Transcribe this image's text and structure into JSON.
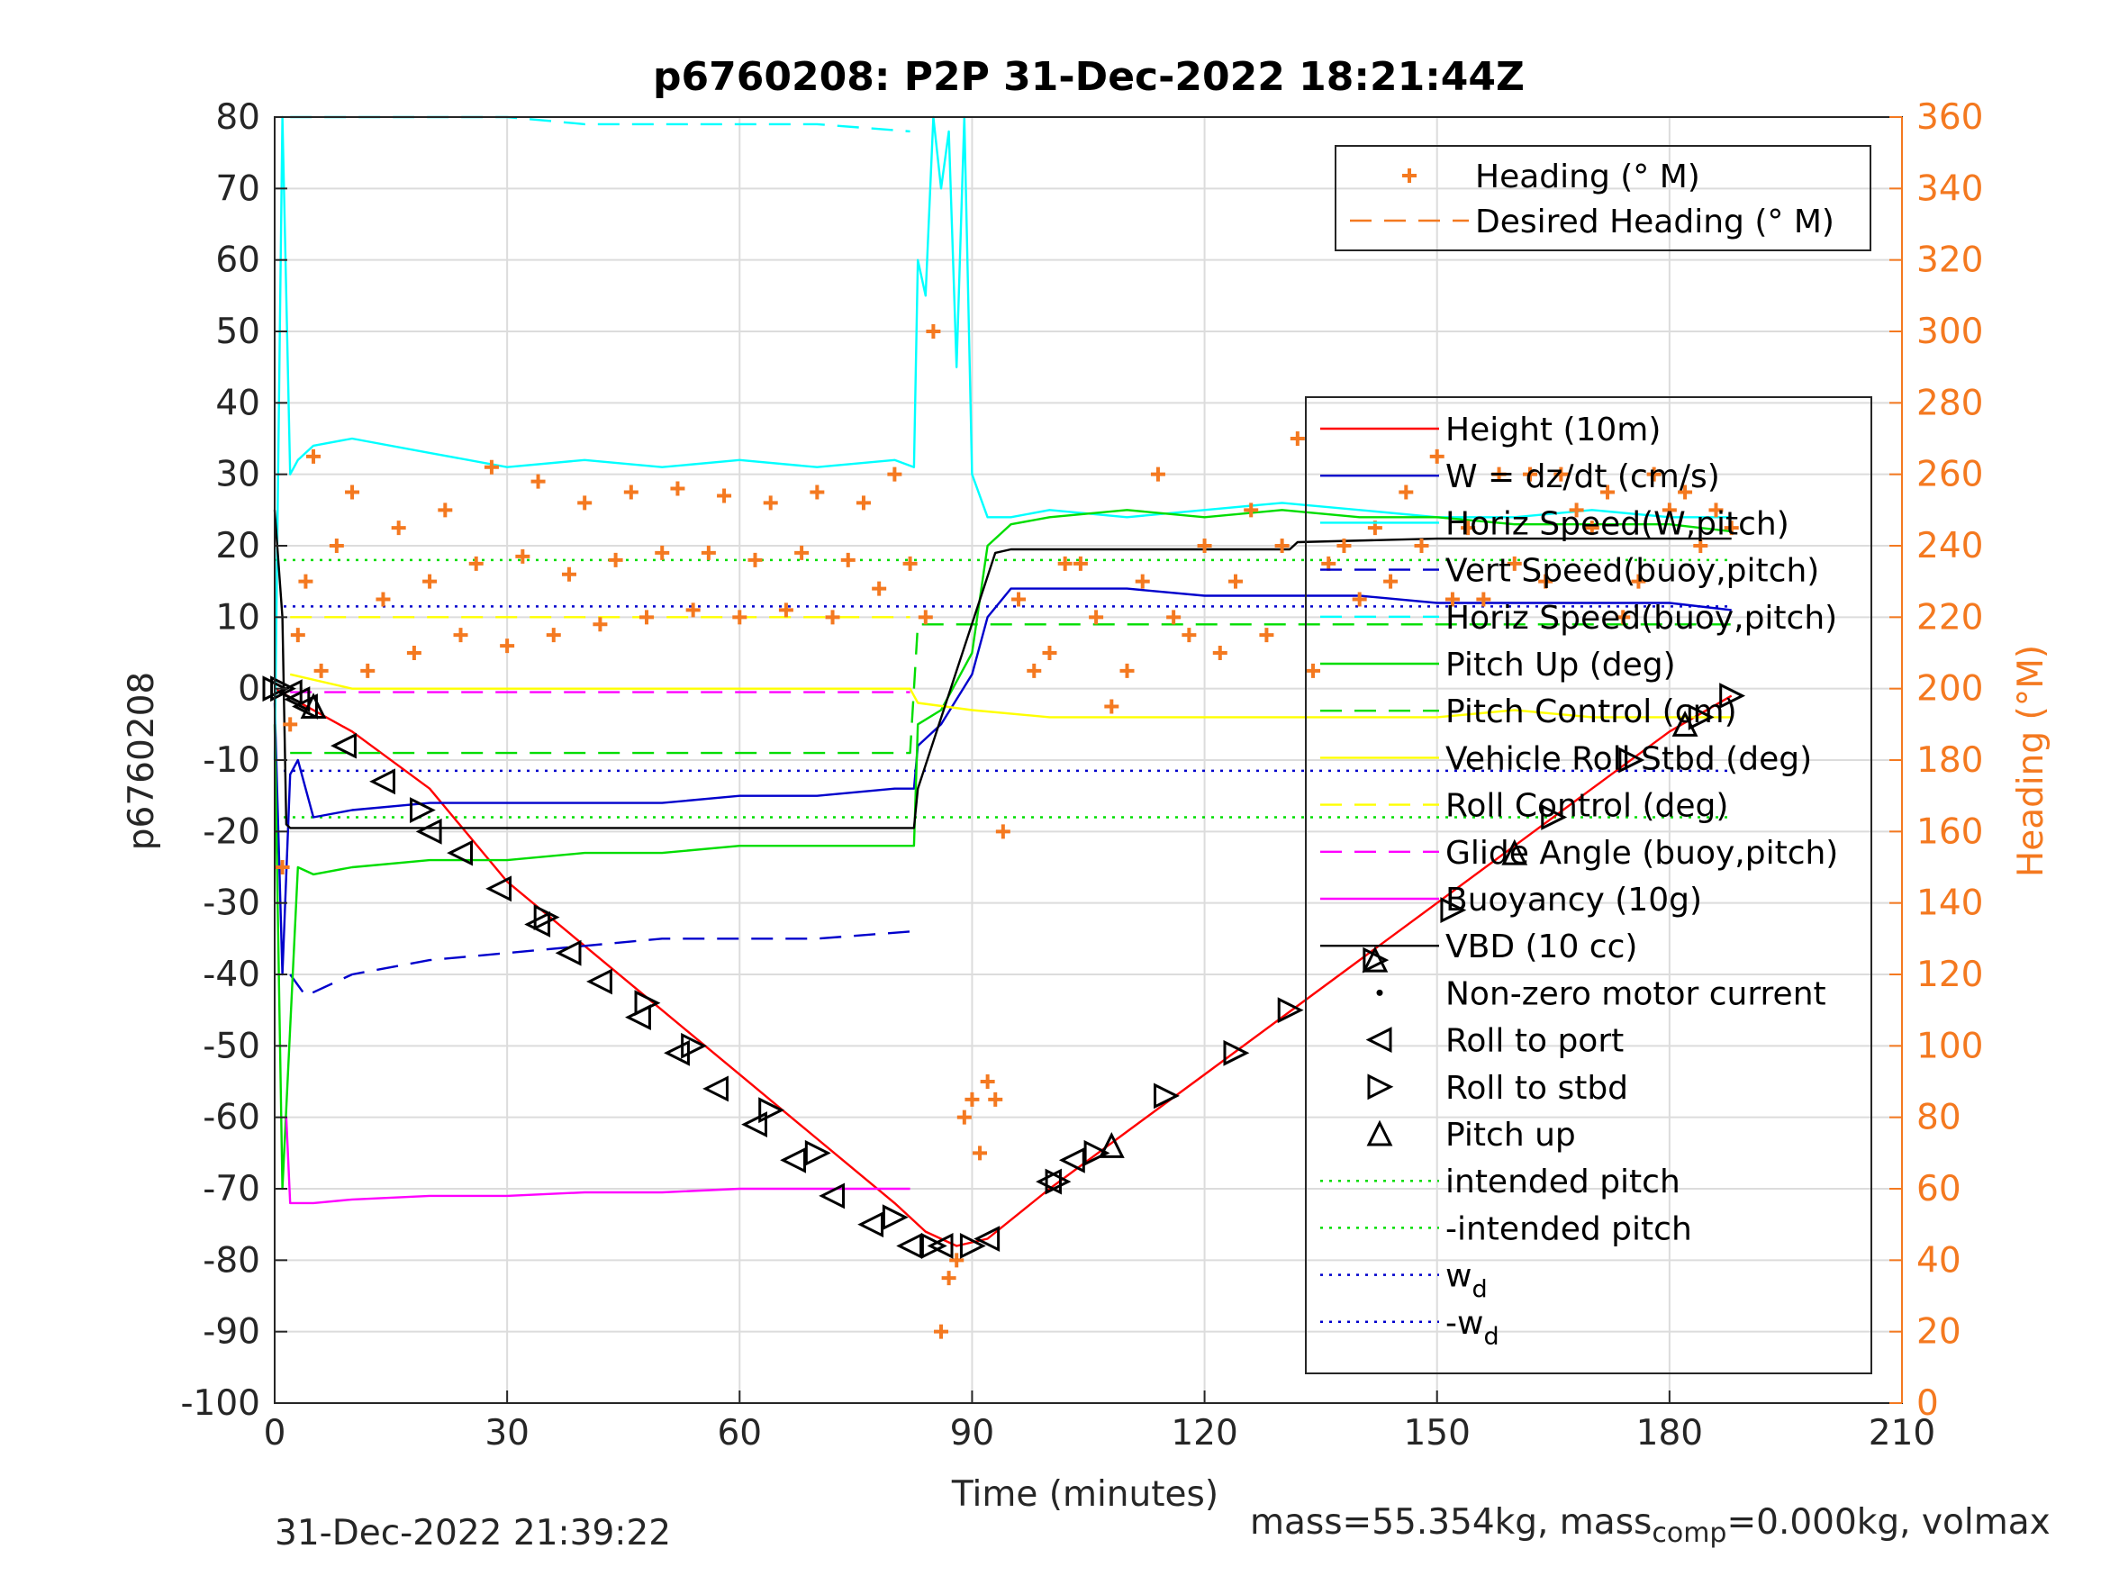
{
  "chart_data": {
    "type": "line",
    "title": "p6760208: P2P 31-Dec-2022 18:21:44Z",
    "xlabel": "Time (minutes)",
    "ylabel": "p6760208",
    "y2label": "Heading (°M)",
    "xlim": [
      0,
      210
    ],
    "ylim": [
      -100,
      80
    ],
    "y2lim": [
      0,
      360
    ],
    "xticks": [
      "0",
      "30",
      "60",
      "90",
      "120",
      "150",
      "180",
      "210"
    ],
    "yticks": [
      "80",
      "70",
      "60",
      "50",
      "40",
      "30",
      "20",
      "10",
      "0",
      "-10",
      "-20",
      "-30",
      "-40",
      "-50",
      "-60",
      "-70",
      "-80",
      "-90",
      "-100"
    ],
    "y2ticks": [
      "360",
      "340",
      "320",
      "300",
      "280",
      "260",
      "240",
      "220",
      "200",
      "180",
      "160",
      "140",
      "120",
      "100",
      "80",
      "60",
      "40",
      "20",
      "0"
    ],
    "grid": true,
    "colors": {
      "axis": "#262626",
      "grid": "#dcdcdc",
      "heading": "#f47920",
      "height": "#ff0000",
      "w": "#0000cc",
      "horiz_speed": "#00ffff",
      "pitch": "#00dd00",
      "roll": "#ffff00",
      "buoyancy": "#ff00ff",
      "vbd": "#000000"
    },
    "legend_top": {
      "placement": "top-right",
      "entries": [
        {
          "label": "Heading (° M)",
          "style": "plus",
          "color": "#f47920"
        },
        {
          "label": "Desired Heading (° M)",
          "style": "dash",
          "color": "#f47920"
        }
      ]
    },
    "legend_main": {
      "placement": "right",
      "entries": [
        {
          "label": "Height (10m)",
          "style": "line",
          "color": "#ff0000"
        },
        {
          "label": "W = dz/dt (cm/s)",
          "style": "line",
          "color": "#0000cc"
        },
        {
          "label": "Horiz Speed(W,pitch)",
          "style": "line",
          "color": "#00ffff"
        },
        {
          "label": "Vert Speed(buoy,pitch)",
          "style": "dash",
          "color": "#0000cc"
        },
        {
          "label": "Horiz Speed(buoy,pitch)",
          "style": "dash",
          "color": "#00ffff"
        },
        {
          "label": "Pitch Up (deg)",
          "style": "line",
          "color": "#00dd00"
        },
        {
          "label": "Pitch Control (cm)",
          "style": "dash",
          "color": "#00dd00"
        },
        {
          "label": "Vehicle Roll Stbd (deg)",
          "style": "line",
          "color": "#ffff00"
        },
        {
          "label": "Roll Control (deg)",
          "style": "dash",
          "color": "#ffff00"
        },
        {
          "label": "Glide Angle (buoy,pitch)",
          "style": "dash",
          "color": "#ff00ff"
        },
        {
          "label": "Buoyancy (10g)",
          "style": "line",
          "color": "#ff00ff"
        },
        {
          "label": "VBD (10 cc)",
          "style": "line",
          "color": "#000000"
        },
        {
          "label": "Non-zero motor current",
          "style": "dot",
          "color": "#000000"
        },
        {
          "label": "Roll to port",
          "style": "tri-left",
          "color": "#000000"
        },
        {
          "label": "Roll to stbd",
          "style": "tri-right",
          "color": "#000000"
        },
        {
          "label": "Pitch up",
          "style": "tri-up",
          "color": "#000000"
        },
        {
          "label": "intended pitch",
          "style": "dot-line",
          "color": "#00dd00"
        },
        {
          "label": "-intended pitch",
          "style": "dot-line",
          "color": "#00dd00"
        },
        {
          "label": "w",
          "sub": "d",
          "style": "dot-line",
          "color": "#0000cc"
        },
        {
          "label": "-w",
          "sub": "d",
          "style": "dot-line",
          "color": "#0000cc"
        }
      ]
    },
    "series": [
      {
        "name": "Height (10m)",
        "color": "#ff0000",
        "style": "solid",
        "x": [
          0,
          10,
          20,
          30,
          40,
          50,
          60,
          70,
          80,
          84,
          88,
          92,
          100,
          110,
          120,
          130,
          140,
          150,
          160,
          170,
          180,
          188
        ],
        "y": [
          0,
          -6,
          -14,
          -27,
          -36,
          -45,
          -54,
          -63,
          -72,
          -76,
          -78,
          -77,
          -70,
          -62,
          -54,
          -46,
          -38,
          -30,
          -22,
          -14,
          -6,
          -1
        ]
      },
      {
        "name": "W = dz/dt (cm/s)",
        "color": "#0000cc",
        "style": "solid",
        "x": [
          0,
          1,
          2,
          3,
          5,
          10,
          20,
          30,
          40,
          50,
          60,
          70,
          80,
          82.5,
          83,
          86,
          90,
          92,
          95,
          100,
          110,
          120,
          130,
          140,
          150,
          160,
          170,
          180,
          188
        ],
        "y": [
          -2,
          -40,
          -12,
          -10,
          -18,
          -17,
          -16,
          -16,
          -16,
          -16,
          -15,
          -15,
          -14,
          -14,
          -8,
          -5,
          2,
          10,
          14,
          14,
          14,
          13,
          13,
          13,
          12,
          12,
          12,
          12,
          11
        ]
      },
      {
        "name": "Horiz Speed(W,pitch)",
        "color": "#00ffff",
        "style": "solid",
        "x": [
          0,
          1,
          2,
          3,
          5,
          10,
          20,
          30,
          40,
          50,
          60,
          70,
          80,
          82.5,
          83,
          84,
          85,
          86,
          87,
          88,
          89,
          90,
          92,
          95,
          100,
          110,
          120,
          130,
          140,
          150,
          160,
          170,
          180,
          188
        ],
        "y": [
          -10,
          80,
          30,
          32,
          34,
          35,
          33,
          31,
          32,
          31,
          32,
          31,
          32,
          31,
          60,
          55,
          80,
          70,
          78,
          45,
          80,
          30,
          24,
          24,
          25,
          24,
          25,
          26,
          25,
          24,
          24,
          25,
          24,
          24
        ]
      },
      {
        "name": "Vert Speed(buoy,pitch)",
        "color": "#0000cc",
        "style": "dashed",
        "x": [
          2,
          4,
          10,
          20,
          30,
          40,
          50,
          60,
          70,
          82
        ],
        "y": [
          -40,
          -43,
          -40,
          -38,
          -37,
          -36,
          -35,
          -35,
          -35,
          -34
        ]
      },
      {
        "name": "Horiz Speed(buoy,pitch)",
        "color": "#00ffff",
        "style": "dashed",
        "x": [
          2,
          10,
          20,
          30,
          40,
          50,
          60,
          70,
          82
        ],
        "y": [
          80,
          80,
          80,
          80,
          79,
          79,
          79,
          79,
          78
        ]
      },
      {
        "name": "Pitch Up (deg)",
        "color": "#00dd00",
        "style": "solid",
        "x": [
          0,
          1,
          3,
          5,
          10,
          20,
          30,
          40,
          50,
          60,
          70,
          80,
          82.5,
          83,
          86,
          90,
          92,
          95,
          100,
          110,
          120,
          130,
          140,
          150,
          160,
          170,
          180,
          188
        ],
        "y": [
          -5,
          -70,
          -25,
          -26,
          -25,
          -24,
          -24,
          -23,
          -23,
          -22,
          -22,
          -22,
          -22,
          -5,
          -3,
          5,
          20,
          23,
          24,
          25,
          24,
          25,
          24,
          24,
          23,
          23,
          23,
          22
        ]
      },
      {
        "name": "Pitch Control (cm)",
        "color": "#00dd00",
        "style": "dashed",
        "x": [
          2,
          82,
          83,
          188
        ],
        "y": [
          -9,
          -9,
          9,
          9
        ]
      },
      {
        "name": "Vehicle Roll Stbd (deg)",
        "color": "#ffff00",
        "style": "solid",
        "x": [
          2,
          10,
          20,
          30,
          40,
          50,
          60,
          70,
          82,
          83,
          90,
          100,
          110,
          120,
          130,
          140,
          150,
          160,
          170,
          180,
          188
        ],
        "y": [
          2,
          0,
          0,
          0,
          0,
          0,
          0,
          0,
          0,
          -2,
          -3,
          -4,
          -4,
          -4,
          -4,
          -4,
          -4,
          -3,
          -4,
          -4,
          -4
        ]
      },
      {
        "name": "Roll Control (deg)",
        "color": "#ffff00",
        "style": "dashed",
        "x": [
          2,
          82
        ],
        "y": [
          10,
          10
        ]
      },
      {
        "name": "Glide Angle (buoy,pitch)",
        "color": "#ff00ff",
        "style": "dashed",
        "x": [
          2,
          82
        ],
        "y": [
          -0.5,
          -0.5
        ]
      },
      {
        "name": "Buoyancy (10g)",
        "color": "#ff00ff",
        "style": "solid",
        "x": [
          1.5,
          2,
          5,
          10,
          20,
          30,
          40,
          50,
          60,
          70,
          82
        ],
        "y": [
          -60,
          -72,
          -72,
          -71.5,
          -71,
          -71,
          -70.5,
          -70.5,
          -70,
          -70,
          -70
        ]
      },
      {
        "name": "VBD (10 cc)",
        "color": "#000000",
        "style": "solid",
        "x": [
          0,
          1,
          1.5,
          2,
          82.5,
          83,
          93,
          95,
          110,
          131,
          132,
          150,
          188
        ],
        "y": [
          25,
          10,
          -19,
          -19.5,
          -19.5,
          -14,
          19,
          19.5,
          19.5,
          19.5,
          20.5,
          21,
          21
        ]
      },
      {
        "name": "intended pitch",
        "color": "#00dd00",
        "style": "dotted",
        "x": [
          0,
          188
        ],
        "y": [
          18,
          18
        ]
      },
      {
        "name": "-intended pitch",
        "color": "#00dd00",
        "style": "dotted",
        "x": [
          0,
          188
        ],
        "y": [
          -18,
          -18
        ]
      },
      {
        "name": "w_d",
        "color": "#0000cc",
        "style": "dotted",
        "x": [
          0,
          188
        ],
        "y": [
          11.5,
          11.5
        ]
      },
      {
        "name": "-w_d",
        "color": "#0000cc",
        "style": "dotted",
        "x": [
          0,
          188
        ],
        "y": [
          -11.5,
          -11.5
        ]
      }
    ],
    "heading": {
      "name": "Heading (° M)",
      "axis": "right",
      "color": "#f47920",
      "x": [
        1,
        2,
        3,
        4,
        5,
        6,
        8,
        10,
        12,
        14,
        16,
        18,
        20,
        22,
        24,
        26,
        28,
        30,
        32,
        34,
        36,
        38,
        40,
        42,
        44,
        46,
        48,
        50,
        52,
        54,
        56,
        58,
        60,
        62,
        64,
        66,
        68,
        70,
        72,
        74,
        76,
        78,
        80,
        82,
        84,
        85,
        86,
        87,
        88,
        89,
        90,
        91,
        92,
        93,
        94,
        96,
        98,
        100,
        102,
        104,
        106,
        108,
        110,
        112,
        114,
        116,
        118,
        120,
        122,
        124,
        126,
        128,
        130,
        132,
        134,
        136,
        138,
        140,
        142,
        144,
        146,
        148,
        150,
        152,
        154,
        156,
        158,
        160,
        162,
        164,
        166,
        168,
        170,
        172,
        174,
        176,
        178,
        180,
        182,
        184,
        186,
        188
      ],
      "y": [
        150,
        190,
        215,
        230,
        265,
        205,
        240,
        255,
        205,
        225,
        245,
        210,
        230,
        250,
        215,
        235,
        262,
        212,
        237,
        258,
        215,
        232,
        252,
        218,
        236,
        255,
        220,
        238,
        256,
        222,
        238,
        254,
        220,
        236,
        252,
        222,
        238,
        255,
        220,
        236,
        252,
        228,
        260,
        235,
        220,
        300,
        20,
        35,
        40,
        80,
        85,
        70,
        90,
        85,
        160,
        225,
        205,
        210,
        235,
        235,
        220,
        195,
        205,
        230,
        260,
        220,
        215,
        240,
        210,
        230,
        250,
        215,
        240,
        270,
        205,
        235,
        240,
        225,
        245,
        230,
        255,
        240,
        265,
        225,
        245,
        225,
        260,
        235,
        260,
        230,
        260,
        250,
        245,
        255,
        220,
        230,
        260,
        250,
        255,
        240,
        250,
        245
      ]
    },
    "markers": {
      "roll_to_port": {
        "x": [
          2,
          3,
          4,
          9,
          14,
          20,
          24,
          29,
          34,
          38,
          42,
          47,
          52,
          57,
          62,
          67,
          72,
          77,
          82,
          86,
          92,
          100,
          103
        ],
        "y": [
          -0.5,
          -1.5,
          -2.5,
          -8,
          -13,
          -20,
          -23,
          -28,
          -33,
          -37,
          -41,
          -46,
          -51,
          -56,
          -61,
          -66,
          -71,
          -75,
          -78,
          -78,
          -77,
          -69,
          -66
        ]
      },
      "roll_to_stbd": {
        "x": [
          0,
          1,
          19,
          35,
          48,
          54,
          64,
          70,
          80,
          85,
          90,
          101,
          106,
          115,
          124,
          131,
          142,
          152,
          165,
          175,
          184,
          188
        ],
        "y": [
          0,
          0,
          -17,
          -32,
          -44,
          -50,
          -59,
          -65,
          -74,
          -78,
          -78,
          -69,
          -65,
          -57,
          -51,
          -45,
          -38,
          -31,
          -18,
          -10,
          -4,
          -1
        ]
      },
      "pitch_up": {
        "x": [
          5,
          108,
          142,
          160,
          182
        ],
        "y": [
          -2.5,
          -64,
          -38,
          -23,
          -5
        ]
      }
    }
  },
  "footer": {
    "timestamp": "31-Dec-2022 21:39:22",
    "mass_text": "mass=55.354kg, mass",
    "mass_sub": "comp",
    "mass_rest": "=0.000kg, volmax"
  }
}
